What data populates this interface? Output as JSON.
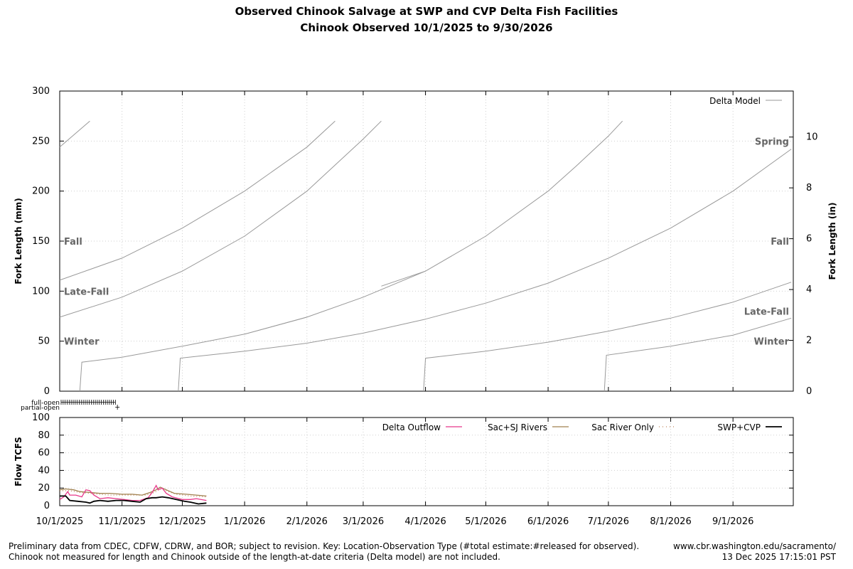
{
  "title_line1": "Observed Chinook Salvage at SWP and CVP Delta Fish Facilities",
  "title_line2": "Chinook Observed 10/1/2025 to 9/30/2026",
  "footer": {
    "note_line1": "Preliminary data from CDEC, CDFW, CDRW, and BOR; subject to revision. Key: Location-Observation Type (#total estimate:#released for observed).",
    "note_line2": "Chinook not measured for length and Chinook outside of the length-at-date criteria (Delta model) are not included.",
    "source": "www.cbr.washington.edu/sacramento/",
    "timestamp": "13 Dec 2025 17:15:01 PST"
  },
  "colors": {
    "delta_model": "#999999",
    "delta_outflow": "#e8388a",
    "sac_sj": "#a0804f",
    "sac_only": "#c0855a",
    "swp_cvp": "#000000",
    "grid": "#cfcfcf",
    "run_label": "#666666"
  },
  "chart_data": [
    {
      "type": "line",
      "panel": "fork-length",
      "ylabel": "Fork Length (mm)",
      "y2label": "Fork Length (in)",
      "ylim": [
        0,
        300
      ],
      "y2lim": [
        0,
        11.81
      ],
      "xlim": [
        "10/1/2025",
        "9/30/2026"
      ],
      "yticks": [
        "0",
        "50",
        "100",
        "150",
        "200",
        "250",
        "300"
      ],
      "y2ticks": [
        "0",
        "2",
        "4",
        "6",
        "8",
        "10"
      ],
      "grid": true,
      "legend": {
        "position": "top-right",
        "label": "Delta Model"
      },
      "run_labels_left": [
        {
          "text": "Fall",
          "y": 150
        },
        {
          "text": "Late-Fall",
          "y": 100
        },
        {
          "text": "Winter",
          "y": 50
        }
      ],
      "run_labels_right": [
        {
          "text": "Spring",
          "y": 250
        },
        {
          "text": "Fall",
          "y": 150
        },
        {
          "text": "Late-Fall",
          "y": 80
        },
        {
          "text": "Winter",
          "y": 50
        }
      ],
      "series": [
        {
          "name": "Spring",
          "points": [
            [
              "10/1/2025",
              244
            ],
            [
              "10/16/2025",
              270
            ]
          ]
        },
        {
          "name": "Spring",
          "points": [
            [
              "4/1/2026",
              120
            ],
            [
              "5/1/2026",
              155
            ],
            [
              "6/1/2026",
              200
            ],
            [
              "6/15/2026",
              225
            ],
            [
              "7/1/2026",
              255
            ],
            [
              "7/8/2026",
              270
            ]
          ]
        },
        {
          "name": "Fall",
          "points": [
            [
              "10/1/2025",
              111
            ],
            [
              "11/1/2025",
              133
            ],
            [
              "12/1/2025",
              163
            ],
            [
              "1/1/2026",
              200
            ],
            [
              "2/1/2026",
              244
            ],
            [
              "2/15/2026",
              270
            ]
          ]
        },
        {
          "name": "Fall",
          "points": [
            [
              "7/1/2026",
              133
            ],
            [
              "8/1/2026",
              163
            ],
            [
              "9/1/2026",
              200
            ],
            [
              "9/30/2026",
              242
            ]
          ]
        },
        {
          "name": "Late-Fall",
          "points": [
            [
              "10/1/2025",
              74
            ],
            [
              "11/1/2025",
              94
            ],
            [
              "12/1/2025",
              120
            ],
            [
              "1/1/2026",
              155
            ],
            [
              "2/1/2026",
              200
            ],
            [
              "3/1/2026",
              252
            ],
            [
              "3/10/2026",
              270
            ]
          ]
        },
        {
          "name": "Late-Fall",
          "points": [
            [
              "3/10/2026",
              105
            ],
            [
              "4/1/2026",
              120
            ]
          ]
        },
        {
          "name": "Late-Fall",
          "points": [
            [
              "1/1/2026",
              57
            ],
            [
              "2/1/2026",
              74
            ],
            [
              "3/1/2026",
              94
            ],
            [
              "4/1/2026",
              120
            ]
          ]
        },
        {
          "name": "Late-Fall",
          "points": [
            [
              "4/1/2026",
              72
            ],
            [
              "5/1/2026",
              88
            ],
            [
              "6/1/2026",
              108
            ],
            [
              "7/1/2026",
              133
            ]
          ]
        },
        {
          "name": "Late-Fall",
          "points": [
            [
              "7/1/2026",
              60
            ],
            [
              "8/1/2026",
              73
            ],
            [
              "9/1/2026",
              89
            ],
            [
              "9/30/2026",
              109
            ]
          ]
        },
        {
          "name": "Winter",
          "points": [
            [
              "10/11/2025",
              0
            ],
            [
              "10/12/2025",
              29
            ],
            [
              "11/1/2025",
              34
            ],
            [
              "12/1/2025",
              45
            ],
            [
              "1/1/2026",
              57
            ],
            [
              "2/1/2026",
              74
            ]
          ]
        },
        {
          "name": "Winter",
          "points": [
            [
              "11/29/2025",
              0
            ],
            [
              "11/30/2025",
              33
            ],
            [
              "1/1/2026",
              40
            ],
            [
              "2/1/2026",
              48
            ],
            [
              "3/1/2026",
              58
            ],
            [
              "4/1/2026",
              72
            ]
          ]
        },
        {
          "name": "Winter",
          "points": [
            [
              "3/31/2026",
              0
            ],
            [
              "4/1/2026",
              33
            ],
            [
              "5/1/2026",
              40
            ],
            [
              "6/1/2026",
              49
            ],
            [
              "7/1/2026",
              60
            ]
          ]
        },
        {
          "name": "Winter",
          "points": [
            [
              "6/29/2026",
              0
            ],
            [
              "6/30/2026",
              36
            ],
            [
              "8/1/2026",
              45
            ],
            [
              "9/1/2026",
              56
            ],
            [
              "9/30/2026",
              73
            ]
          ]
        }
      ]
    },
    {
      "type": "line",
      "panel": "flow",
      "ylabel": "Flow TCFS",
      "ylim": [
        0,
        100
      ],
      "yticks": [
        "0",
        "20",
        "40",
        "60",
        "80",
        "100"
      ],
      "xlim": [
        "10/1/2025",
        "9/30/2026"
      ],
      "xticks": [
        "10/1/2025",
        "11/1/2025",
        "12/1/2025",
        "1/1/2026",
        "2/1/2026",
        "3/1/2026",
        "4/1/2026",
        "5/1/2026",
        "6/1/2026",
        "7/1/2026",
        "8/1/2026",
        "9/1/2026"
      ],
      "grid": true,
      "legend": {
        "position": "top"
      },
      "gates": {
        "full_label": "full-open",
        "partial_label": "partial-open",
        "full_open_range": [
          "10/1/2025",
          "10/28/2025"
        ],
        "partial_open_date": "10/29/2025"
      },
      "series": [
        {
          "name": "Delta Outflow",
          "style": "solid",
          "color_key": "delta_outflow",
          "points": [
            [
              "10/1/2025",
              7
            ],
            [
              "10/3/2025",
              10
            ],
            [
              "10/5/2025",
              16
            ],
            [
              "10/6/2025",
              12
            ],
            [
              "10/9/2025",
              12
            ],
            [
              "10/12/2025",
              10
            ],
            [
              "10/14/2025",
              18
            ],
            [
              "10/16/2025",
              17
            ],
            [
              "10/18/2025",
              12
            ],
            [
              "10/21/2025",
              8
            ],
            [
              "10/25/2025",
              9
            ],
            [
              "10/29/2025",
              8
            ],
            [
              "11/2/2025",
              7
            ],
            [
              "11/6/2025",
              6
            ],
            [
              "11/10/2025",
              6
            ],
            [
              "11/14/2025",
              9
            ],
            [
              "11/16/2025",
              15
            ],
            [
              "11/18/2025",
              23
            ],
            [
              "11/19/2025",
              18
            ],
            [
              "11/21/2025",
              20
            ],
            [
              "11/23/2025",
              14
            ],
            [
              "11/26/2025",
              10
            ],
            [
              "12/1/2025",
              7
            ],
            [
              "12/5/2025",
              7
            ],
            [
              "12/8/2025",
              8
            ],
            [
              "12/13/2025",
              6
            ]
          ]
        },
        {
          "name": "Sac+SJ Rivers",
          "style": "solid",
          "color_key": "sac_sj",
          "points": [
            [
              "10/1/2025",
              18
            ],
            [
              "10/4/2025",
              19
            ],
            [
              "10/8/2025",
              18
            ],
            [
              "10/11/2025",
              16
            ],
            [
              "10/16/2025",
              15
            ],
            [
              "10/21/2025",
              14
            ],
            [
              "10/26/2025",
              14
            ],
            [
              "11/1/2025",
              13
            ],
            [
              "11/6/2025",
              13
            ],
            [
              "11/11/2025",
              12
            ],
            [
              "11/15/2025",
              15
            ],
            [
              "11/18/2025",
              18
            ],
            [
              "11/20/2025",
              21
            ],
            [
              "11/23/2025",
              18
            ],
            [
              "11/27/2025",
              14
            ],
            [
              "12/3/2025",
              13
            ],
            [
              "12/8/2025",
              12
            ],
            [
              "12/13/2025",
              11
            ]
          ]
        },
        {
          "name": "Sac River Only",
          "style": "dotted",
          "color_key": "sac_only",
          "points": [
            [
              "10/1/2025",
              17
            ],
            [
              "10/6/2025",
              17
            ],
            [
              "10/11/2025",
              15
            ],
            [
              "10/16/2025",
              14
            ],
            [
              "10/21/2025",
              13
            ],
            [
              "10/26/2025",
              12
            ],
            [
              "11/1/2025",
              12
            ],
            [
              "11/8/2025",
              12
            ],
            [
              "11/13/2025",
              12
            ],
            [
              "11/17/2025",
              15
            ],
            [
              "11/20/2025",
              19
            ],
            [
              "11/23/2025",
              17
            ],
            [
              "11/28/2025",
              13
            ],
            [
              "12/5/2025",
              11
            ],
            [
              "12/13/2025",
              10
            ]
          ]
        },
        {
          "name": "SWP+CVP",
          "style": "solid",
          "color_key": "swp_cvp",
          "points": [
            [
              "10/1/2025",
              11
            ],
            [
              "10/4/2025",
              11
            ],
            [
              "10/6/2025",
              6
            ],
            [
              "10/10/2025",
              5
            ],
            [
              "10/14/2025",
              4
            ],
            [
              "10/16/2025",
              3
            ],
            [
              "10/18/2025",
              5
            ],
            [
              "10/21/2025",
              6
            ],
            [
              "10/25/2025",
              5
            ],
            [
              "10/29/2025",
              6
            ],
            [
              "11/2/2025",
              6
            ],
            [
              "11/6/2025",
              5
            ],
            [
              "11/10/2025",
              4
            ],
            [
              "11/13/2025",
              8
            ],
            [
              "11/16/2025",
              9
            ],
            [
              "11/18/2025",
              9
            ],
            [
              "11/21/2025",
              10
            ],
            [
              "11/24/2025",
              9
            ],
            [
              "11/28/2025",
              7
            ],
            [
              "12/2/2025",
              5
            ],
            [
              "12/5/2025",
              4
            ],
            [
              "12/9/2025",
              2
            ],
            [
              "12/13/2025",
              3
            ]
          ]
        }
      ]
    }
  ]
}
